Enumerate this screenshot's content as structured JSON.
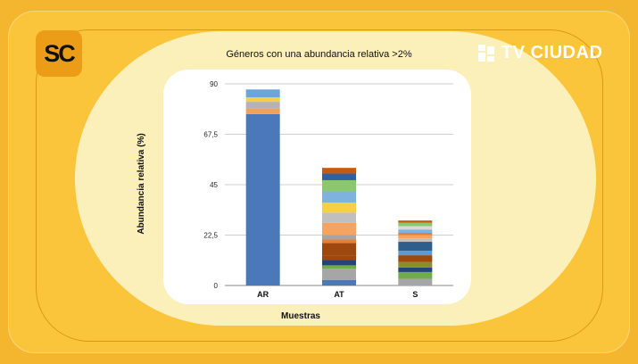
{
  "brand": {
    "left_logo": "SC",
    "right_logo": "TV CIUDAD"
  },
  "chart_data": {
    "type": "bar",
    "stacked": true,
    "title": "Géneros con una abundancia relativa >2%",
    "xlabel": "Muestras",
    "ylabel": "Abundancia relativa (%)",
    "ylim": [
      0,
      90
    ],
    "yticks": [
      0,
      22.5,
      45,
      67.5,
      90
    ],
    "ytick_labels": [
      "0",
      "22,5",
      "45",
      "67,5",
      "90"
    ],
    "grid": true,
    "categories": [
      "AR",
      "AT",
      "S"
    ],
    "stacks": [
      {
        "category": "AR",
        "segments": [
          {
            "value": 76.5,
            "color": "#4a78b8"
          },
          {
            "value": 2.5,
            "color": "#f0a05a"
          },
          {
            "value": 3.0,
            "color": "#b3b3b3"
          },
          {
            "value": 2.0,
            "color": "#f5cf45"
          },
          {
            "value": 3.5,
            "color": "#6da5d8"
          }
        ]
      },
      {
        "category": "AT",
        "segments": [
          {
            "value": 2.5,
            "color": "#4a78b8"
          },
          {
            "value": 5.0,
            "color": "#a6a6a6"
          },
          {
            "value": 1.5,
            "color": "#70ad47"
          },
          {
            "value": 2.5,
            "color": "#264478"
          },
          {
            "value": 2.0,
            "color": "#9e480e"
          },
          {
            "value": 5.5,
            "color": "#9e480e"
          },
          {
            "value": 1.5,
            "color": "#ed7d31"
          },
          {
            "value": 2.0,
            "color": "#a5a5a5"
          },
          {
            "value": 5.5,
            "color": "#f4a460"
          },
          {
            "value": 4.5,
            "color": "#bfbfbf"
          },
          {
            "value": 4.5,
            "color": "#f5cf45"
          },
          {
            "value": 5.0,
            "color": "#7fb2de"
          },
          {
            "value": 5.0,
            "color": "#8cc66d"
          },
          {
            "value": 3.0,
            "color": "#3060a0"
          },
          {
            "value": 2.5,
            "color": "#c55a11"
          }
        ]
      },
      {
        "category": "S",
        "segments": [
          {
            "value": 3.0,
            "color": "#a6a6a6"
          },
          {
            "value": 3.0,
            "color": "#70ad47"
          },
          {
            "value": 2.0,
            "color": "#264478"
          },
          {
            "value": 2.5,
            "color": "#8c8c2a"
          },
          {
            "value": 3.0,
            "color": "#9e480e"
          },
          {
            "value": 2.0,
            "color": "#5b9bd5"
          },
          {
            "value": 4.0,
            "color": "#2e5e8c"
          },
          {
            "value": 1.5,
            "color": "#c0c0c0"
          },
          {
            "value": 1.5,
            "color": "#f4a460"
          },
          {
            "value": 1.0,
            "color": "#ed7d31"
          },
          {
            "value": 1.5,
            "color": "#7fb2de"
          },
          {
            "value": 1.5,
            "color": "#d9d9d9"
          },
          {
            "value": 1.5,
            "color": "#8cc66d"
          },
          {
            "value": 1.0,
            "color": "#c55a11"
          }
        ]
      }
    ]
  }
}
